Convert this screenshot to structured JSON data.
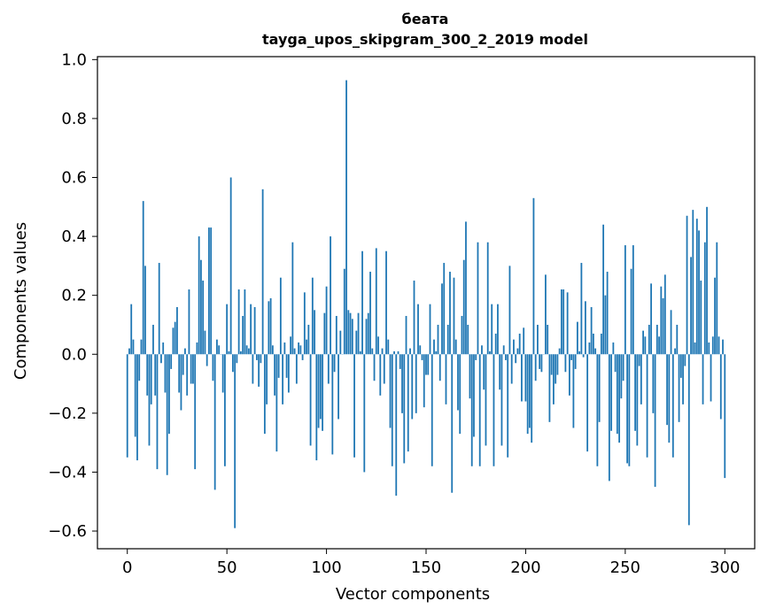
{
  "chart_data": {
    "type": "bar",
    "title_line1": "беата",
    "title_line2": "tayga_upos_skipgram_300_2_2019 model",
    "xlabel": "Vector components",
    "ylabel": "Components values",
    "xlim": [
      -15,
      315
    ],
    "ylim": [
      -0.66,
      1.01
    ],
    "xticks": [
      0,
      50,
      100,
      150,
      200,
      250,
      300
    ],
    "xtick_labels": [
      "0",
      "50",
      "100",
      "150",
      "200",
      "250",
      "300"
    ],
    "yticks": [
      -0.6,
      -0.4,
      -0.2,
      0.0,
      0.2,
      0.4,
      0.6,
      0.8,
      1.0
    ],
    "ytick_labels": [
      "−0.6",
      "−0.4",
      "−0.2",
      "0.0",
      "0.2",
      "0.4",
      "0.6",
      "0.8",
      "1.0"
    ],
    "bar_color": "#1f77b4",
    "values": [
      -0.35,
      0.02,
      0.17,
      0.05,
      -0.28,
      -0.36,
      -0.09,
      0.05,
      0.52,
      0.3,
      -0.14,
      -0.31,
      -0.17,
      0.1,
      -0.14,
      -0.39,
      0.31,
      -0.03,
      0.04,
      -0.13,
      -0.41,
      -0.27,
      -0.05,
      0.09,
      0.11,
      0.16,
      -0.13,
      -0.19,
      -0.07,
      0.02,
      -0.14,
      0.22,
      -0.1,
      -0.1,
      -0.39,
      0.04,
      0.4,
      0.32,
      0.25,
      0.08,
      -0.04,
      0.43,
      0.43,
      -0.09,
      -0.46,
      0.05,
      0.03,
      0.0,
      -0.13,
      -0.38,
      0.17,
      0.01,
      0.6,
      -0.06,
      -0.59,
      -0.03,
      0.22,
      0.01,
      0.13,
      0.22,
      0.03,
      0.02,
      0.17,
      -0.1,
      0.16,
      -0.02,
      -0.11,
      -0.03,
      0.56,
      -0.27,
      -0.17,
      0.18,
      0.19,
      0.03,
      -0.14,
      -0.33,
      -0.08,
      0.26,
      -0.17,
      0.04,
      -0.08,
      -0.13,
      0.06,
      0.38,
      0.02,
      -0.1,
      0.04,
      0.03,
      -0.02,
      0.21,
      0.05,
      0.1,
      -0.31,
      0.26,
      0.15,
      -0.36,
      -0.25,
      -0.22,
      -0.26,
      0.14,
      0.23,
      -0.1,
      0.4,
      -0.34,
      -0.06,
      0.13,
      -0.22,
      0.08,
      0.0,
      0.29,
      0.93,
      0.15,
      0.14,
      0.12,
      -0.35,
      0.08,
      0.14,
      0.01,
      0.35,
      -0.4,
      0.12,
      0.14,
      0.28,
      0.02,
      -0.09,
      0.36,
      0.06,
      -0.14,
      0.02,
      -0.1,
      0.35,
      0.05,
      -0.25,
      -0.38,
      0.01,
      -0.48,
      0.01,
      -0.05,
      -0.2,
      -0.37,
      0.13,
      -0.33,
      0.02,
      -0.22,
      0.25,
      -0.2,
      0.17,
      0.03,
      -0.02,
      -0.18,
      -0.07,
      -0.07,
      0.17,
      -0.38,
      0.05,
      0.01,
      0.1,
      -0.09,
      0.24,
      0.31,
      -0.17,
      0.1,
      0.28,
      -0.47,
      0.26,
      0.05,
      -0.19,
      -0.27,
      0.13,
      0.32,
      0.45,
      0.1,
      -0.15,
      -0.38,
      -0.28,
      -0.02,
      0.38,
      -0.38,
      0.03,
      -0.12,
      -0.31,
      0.38,
      0.01,
      0.17,
      -0.38,
      0.07,
      0.17,
      -0.12,
      -0.31,
      0.03,
      -0.02,
      -0.35,
      0.3,
      -0.1,
      0.05,
      -0.03,
      0.02,
      0.07,
      -0.16,
      0.09,
      -0.16,
      -0.27,
      -0.25,
      -0.3,
      0.53,
      -0.09,
      0.1,
      -0.05,
      -0.06,
      0.0,
      0.27,
      0.1,
      -0.23,
      -0.07,
      -0.17,
      -0.1,
      -0.07,
      0.02,
      0.22,
      0.22,
      -0.06,
      0.21,
      -0.14,
      -0.02,
      -0.25,
      -0.05,
      0.11,
      0.01,
      0.31,
      -0.01,
      0.18,
      -0.33,
      0.04,
      0.16,
      0.07,
      0.02,
      -0.38,
      -0.23,
      0.07,
      0.44,
      0.2,
      0.28,
      -0.43,
      -0.26,
      0.04,
      -0.06,
      -0.27,
      -0.3,
      -0.15,
      -0.09,
      0.37,
      -0.37,
      -0.38,
      0.29,
      0.37,
      -0.26,
      -0.31,
      -0.04,
      -0.17,
      0.08,
      0.06,
      -0.35,
      0.1,
      0.24,
      -0.2,
      -0.45,
      0.1,
      0.06,
      0.23,
      0.19,
      0.27,
      -0.24,
      -0.3,
      0.15,
      -0.35,
      0.02,
      0.1,
      -0.23,
      -0.08,
      -0.17,
      -0.04,
      0.47,
      -0.58,
      0.33,
      0.49,
      0.04,
      0.46,
      0.42,
      0.25,
      -0.17,
      0.38,
      0.5,
      0.04,
      -0.16,
      0.06,
      0.26,
      0.38,
      0.06,
      -0.22,
      0.05,
      -0.42
    ]
  }
}
